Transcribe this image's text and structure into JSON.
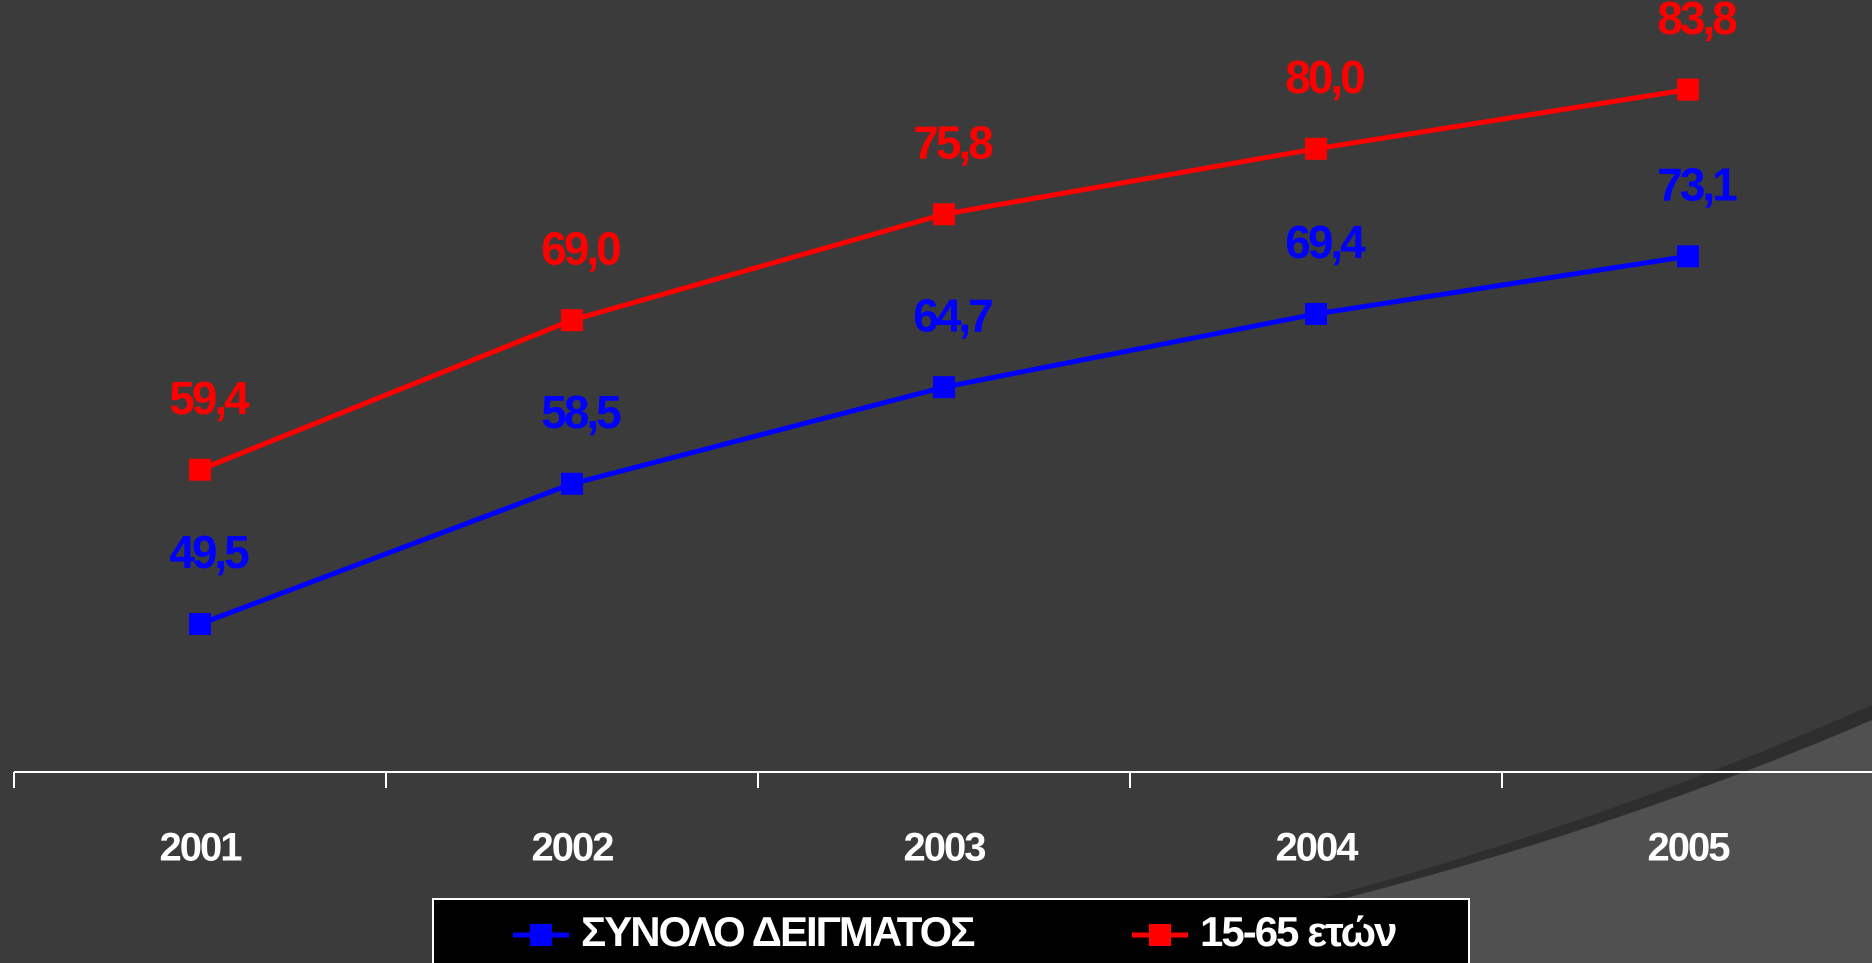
{
  "chart_data": {
    "type": "line",
    "categories": [
      "2001",
      "2002",
      "2003",
      "2004",
      "2005"
    ],
    "ylim": [
      40,
      90
    ],
    "series": [
      {
        "name": "ΣΥΝΟΛΟ ΔΕΙΓΜΑΤΟΣ",
        "color": "#0000ff",
        "values": [
          49.5,
          58.5,
          64.7,
          69.4,
          73.1
        ],
        "value_labels": [
          "49,5",
          "58,5",
          "64,7",
          "69,4",
          "73,1"
        ]
      },
      {
        "name": "15-65 ετών",
        "color": "#ff0000",
        "values": [
          59.4,
          69.0,
          75.8,
          80.0,
          83.8
        ],
        "value_labels": [
          "59,4",
          "69,0",
          "75,8",
          "80,0",
          "83,8"
        ]
      }
    ]
  }
}
